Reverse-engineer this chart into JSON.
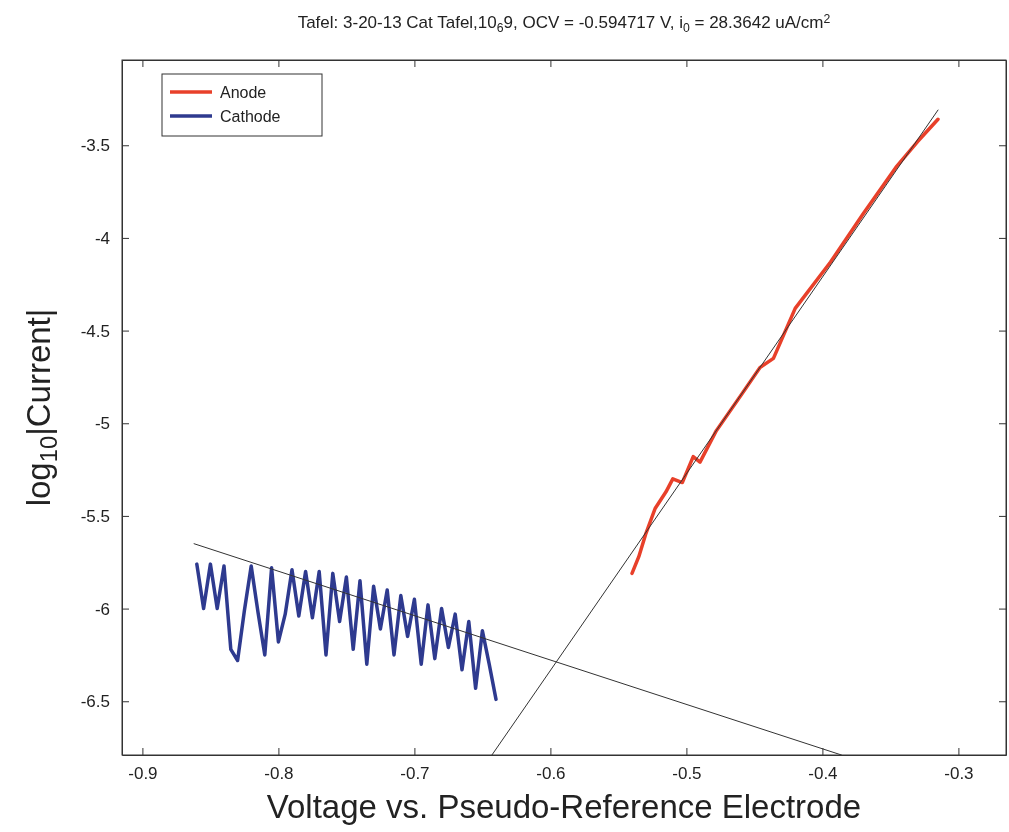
{
  "chart_data": {
    "type": "line",
    "title": "Tafel: 3-20-13 Cat Tafel,10$_{6}$9, OCV = -0.594717 V, i$_{0}$ = 28.3642 uA/cm$^{2}$",
    "xlabel": "Voltage vs. Pseudo-Reference Electrode",
    "ylabel": "log$_{10}$|Current|",
    "xlim": [
      -0.915,
      -0.265
    ],
    "ylim": [
      -6.79,
      -3.04
    ],
    "xticks": [
      -0.9,
      -0.8,
      -0.7,
      -0.6,
      -0.5,
      -0.4,
      -0.3
    ],
    "yticks": [
      -6.5,
      -6,
      -5.5,
      -5,
      -4.5,
      -4,
      -3.5
    ],
    "grid": false,
    "legend": "top left",
    "marker": "none",
    "line_style": "solid",
    "series": [
      {
        "name": "Anode",
        "color": "#e8402a",
        "x": [
          -0.54,
          -0.535,
          -0.53,
          -0.523,
          -0.515,
          -0.51,
          -0.503,
          -0.495,
          -0.49,
          -0.478,
          -0.46,
          -0.446,
          -0.436,
          -0.42,
          -0.394,
          -0.37,
          -0.346,
          -0.33,
          -0.315
        ],
        "values": [
          -5.81,
          -5.72,
          -5.6,
          -5.46,
          -5.37,
          -5.3,
          -5.32,
          -5.18,
          -5.21,
          -5.04,
          -4.85,
          -4.7,
          -4.65,
          -4.38,
          -4.13,
          -3.87,
          -3.62,
          -3.48,
          -3.36
        ]
      },
      {
        "name": "Cathode",
        "color": "#2e3a8f",
        "x": [
          -0.86,
          -0.855,
          -0.85,
          -0.845,
          -0.84,
          -0.835,
          -0.83,
          -0.825,
          -0.82,
          -0.815,
          -0.81,
          -0.805,
          -0.8,
          -0.795,
          -0.79,
          -0.785,
          -0.78,
          -0.775,
          -0.77,
          -0.765,
          -0.76,
          -0.755,
          -0.75,
          -0.745,
          -0.74,
          -0.735,
          -0.73,
          -0.725,
          -0.72,
          -0.715,
          -0.71,
          -0.705,
          -0.7,
          -0.695,
          -0.69,
          -0.685,
          -0.68,
          -0.675,
          -0.67,
          -0.665,
          -0.66,
          -0.655,
          -0.65,
          -0.645,
          -0.64
        ],
        "values": [
          -5.76,
          -6.0,
          -5.76,
          -6.0,
          -5.77,
          -6.22,
          -6.28,
          -6.01,
          -5.77,
          -6.02,
          -6.25,
          -5.78,
          -6.18,
          -6.03,
          -5.79,
          -6.04,
          -5.8,
          -6.05,
          -5.8,
          -6.25,
          -5.81,
          -6.07,
          -5.83,
          -6.22,
          -5.85,
          -6.3,
          -5.88,
          -6.11,
          -5.9,
          -6.25,
          -5.93,
          -6.15,
          -5.95,
          -6.3,
          -5.98,
          -6.27,
          -6.0,
          -6.21,
          -6.03,
          -6.33,
          -6.07,
          -6.43,
          -6.12,
          -6.3,
          -6.49
        ]
      },
      {
        "color": "#333333",
        "x": [
          -0.643,
          -0.315
        ],
        "values": [
          -6.79,
          -3.31
        ]
      },
      {
        "color": "#333333",
        "x": [
          -0.862,
          -0.386
        ],
        "values": [
          -5.65,
          -6.79
        ]
      }
    ]
  }
}
